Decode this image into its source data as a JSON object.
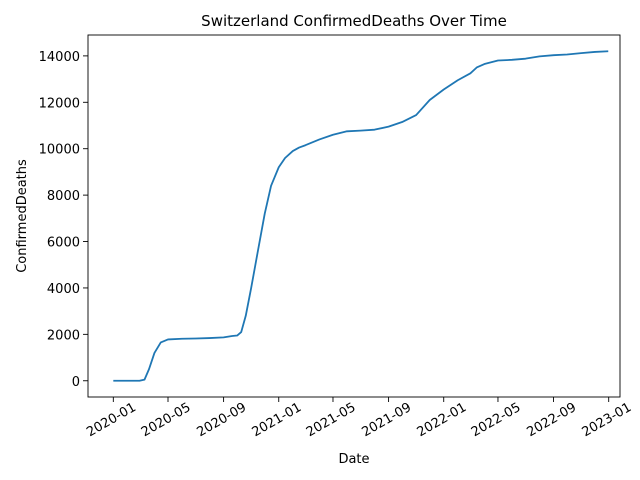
{
  "chart_data": {
    "type": "line",
    "title": "Switzerland  ConfirmedDeaths Over Time",
    "xlabel": "Date",
    "ylabel": "ConfirmedDeaths",
    "xlim": [
      "2019-11-06",
      "2023-01-26"
    ],
    "ylim": [
      -700,
      14900
    ],
    "x_ticks": [
      "2020-01",
      "2020-05",
      "2020-09",
      "2021-01",
      "2021-05",
      "2021-09",
      "2022-01",
      "2022-05",
      "2022-09",
      "2023-01"
    ],
    "y_ticks": [
      0,
      2000,
      4000,
      6000,
      8000,
      10000,
      12000,
      14000
    ],
    "line_color": "#1f77b4",
    "grid": false,
    "series": [
      {
        "x": [
          "2020-01-01",
          "2020-02-28",
          "2020-03-10",
          "2020-03-20",
          "2020-04-01",
          "2020-04-15",
          "2020-05-01",
          "2020-06-01",
          "2020-07-01",
          "2020-08-01",
          "2020-09-01",
          "2020-09-20",
          "2020-10-01",
          "2020-10-10",
          "2020-10-20",
          "2020-11-01",
          "2020-11-15",
          "2020-12-01",
          "2020-12-15",
          "2021-01-01",
          "2021-01-15",
          "2021-02-01",
          "2021-02-15",
          "2021-03-01",
          "2021-04-01",
          "2021-05-01",
          "2021-06-01",
          "2021-07-01",
          "2021-08-01",
          "2021-09-01",
          "2021-10-01",
          "2021-11-01",
          "2021-12-01",
          "2022-01-01",
          "2022-02-01",
          "2022-03-01",
          "2022-03-15",
          "2022-04-01",
          "2022-05-01",
          "2022-06-01",
          "2022-07-01",
          "2022-08-01",
          "2022-09-01",
          "2022-10-01",
          "2022-11-01",
          "2022-12-01",
          "2022-12-31"
        ],
        "y": [
          0,
          0,
          50,
          500,
          1200,
          1650,
          1780,
          1810,
          1820,
          1840,
          1870,
          1930,
          1950,
          2100,
          2800,
          4000,
          5500,
          7200,
          8400,
          9200,
          9600,
          9900,
          10050,
          10150,
          10400,
          10600,
          10750,
          10780,
          10820,
          10950,
          11150,
          11450,
          12100,
          12550,
          12950,
          13250,
          13500,
          13650,
          13800,
          13830,
          13880,
          13980,
          14030,
          14060,
          14120,
          14170,
          14200
        ]
      }
    ]
  }
}
